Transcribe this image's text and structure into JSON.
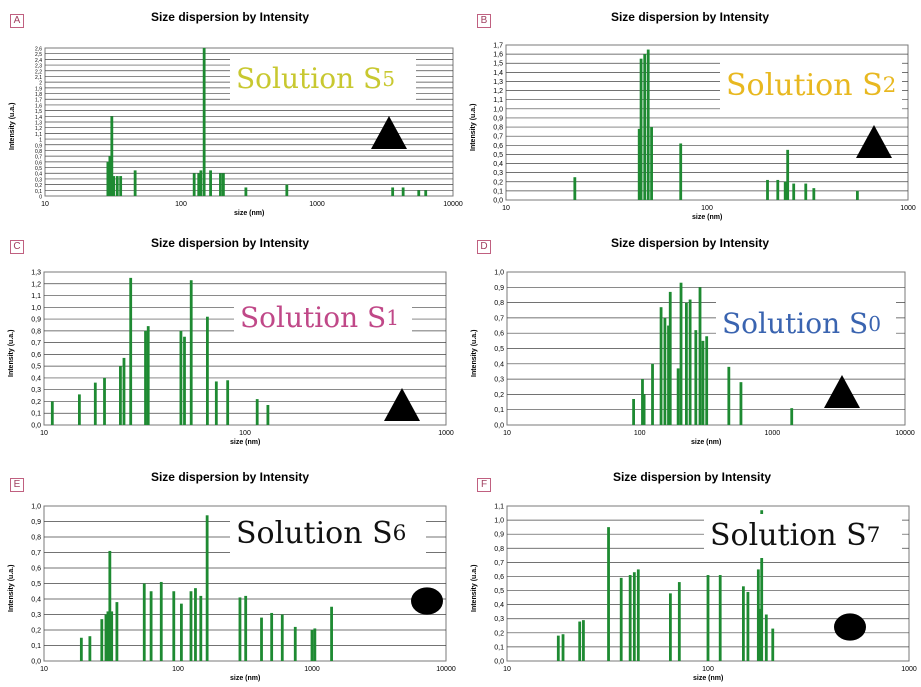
{
  "chart_data": [
    {
      "id": "A",
      "letter": "A",
      "type": "bar",
      "title": "Size dispersion by Intensity",
      "xlabel": "size (nm)",
      "ylabel": "Intensity (u.a.)",
      "x_scale": "log",
      "xlim": [
        10,
        10000
      ],
      "xticks": [
        "10",
        "100",
        "1000",
        "10000"
      ],
      "ylim": [
        0,
        2.6
      ],
      "yticks": [
        "0",
        "0,1",
        "0,2",
        "0,3",
        "0,4",
        "0,5",
        "0,6",
        "0,7",
        "0,8",
        "0,9",
        "1",
        "1,1",
        "1,2",
        "1,3",
        "1,4",
        "1,5",
        "1,6",
        "1,7",
        "1,8",
        "1,9",
        "2",
        "2,1",
        "2,2",
        "2,3",
        "2,4",
        "2,5",
        "2,6"
      ],
      "label_text": "Solution S",
      "label_sub": "5",
      "label_color": "#c8c830",
      "marker": "triangle",
      "bars": [
        [
          29,
          0.6
        ],
        [
          30,
          0.7
        ],
        [
          31,
          1.4
        ],
        [
          32,
          0.35
        ],
        [
          34,
          0.35
        ],
        [
          36,
          0.35
        ],
        [
          46,
          0.45
        ],
        [
          125,
          0.4
        ],
        [
          135,
          0.4
        ],
        [
          140,
          0.45
        ],
        [
          148,
          2.6
        ],
        [
          165,
          0.45
        ],
        [
          195,
          0.4
        ],
        [
          205,
          0.4
        ],
        [
          300,
          0.15
        ],
        [
          600,
          0.2
        ],
        [
          3600,
          0.15
        ],
        [
          4300,
          0.15
        ],
        [
          5600,
          0.1
        ],
        [
          6300,
          0.1
        ]
      ]
    },
    {
      "id": "B",
      "letter": "B",
      "type": "bar",
      "title": "Size dispersion by Intensity",
      "xlabel": "size (nm)",
      "ylabel": "Intensity (u.a.)",
      "x_scale": "log",
      "xlim": [
        10,
        1000
      ],
      "xticks": [
        "10",
        "100",
        "1000"
      ],
      "ylim": [
        0,
        1.7
      ],
      "yticks": [
        "0,0",
        "0,1",
        "0,2",
        "0,3",
        "0,4",
        "0,5",
        "0,6",
        "0,7",
        "0,8",
        "0,9",
        "1,0",
        "1,1",
        "1,2",
        "1,3",
        "1,4",
        "1,5",
        "1,6",
        "1,7"
      ],
      "label_text": "Solution S",
      "label_sub": "2",
      "label_color": "#e8b820",
      "marker": "triangle",
      "bars": [
        [
          22,
          0.25
        ],
        [
          46,
          0.78
        ],
        [
          47,
          1.55
        ],
        [
          49,
          1.6
        ],
        [
          51,
          1.65
        ],
        [
          53,
          0.8
        ],
        [
          74,
          0.62
        ],
        [
          200,
          0.22
        ],
        [
          225,
          0.22
        ],
        [
          245,
          0.2
        ],
        [
          252,
          0.55
        ],
        [
          270,
          0.18
        ],
        [
          310,
          0.18
        ],
        [
          340,
          0.13
        ],
        [
          560,
          0.1
        ]
      ]
    },
    {
      "id": "C",
      "letter": "C",
      "type": "bar",
      "title": "Size dispersion by Intensity",
      "xlabel": "size (nm)",
      "ylabel": "Intensity (u.a.)",
      "x_scale": "log",
      "xlim": [
        10,
        1000
      ],
      "xticks": [
        "10",
        "100",
        "1000"
      ],
      "ylim": [
        0,
        1.3
      ],
      "yticks": [
        "0,0",
        "0,1",
        "0,2",
        "0,3",
        "0,4",
        "0,5",
        "0,6",
        "0,7",
        "0,8",
        "0,9",
        "1,0",
        "1,1",
        "1,2",
        "1,3"
      ],
      "label_text": "Solution S",
      "label_sub": "1",
      "label_color": "#c04888",
      "marker": "triangle",
      "bars": [
        [
          11,
          0.2
        ],
        [
          15,
          0.26
        ],
        [
          18,
          0.36
        ],
        [
          20,
          0.4
        ],
        [
          24,
          0.5
        ],
        [
          25,
          0.57
        ],
        [
          27,
          1.25
        ],
        [
          32,
          0.8
        ],
        [
          33,
          0.84
        ],
        [
          48,
          0.8
        ],
        [
          50,
          0.75
        ],
        [
          54,
          1.23
        ],
        [
          65,
          0.92
        ],
        [
          72,
          0.37
        ],
        [
          82,
          0.38
        ],
        [
          115,
          0.22
        ],
        [
          130,
          0.17
        ]
      ]
    },
    {
      "id": "D",
      "letter": "D",
      "type": "bar",
      "title": "Size dispersion by Intensity",
      "xlabel": "size (nm)",
      "ylabel": "Intensity (u.a.)",
      "x_scale": "log",
      "xlim": [
        10,
        10000
      ],
      "xticks": [
        "10",
        "100",
        "1000",
        "10000"
      ],
      "ylim": [
        0,
        1.0
      ],
      "yticks": [
        "0,0",
        "0,1",
        "0,2",
        "0,3",
        "0,4",
        "0,5",
        "0,6",
        "0,7",
        "0,8",
        "0,9",
        "1,0"
      ],
      "label_text": "Solution S",
      "label_sub": "0",
      "label_color": "#3a64b0",
      "marker": "triangle",
      "bars": [
        [
          90,
          0.17
        ],
        [
          105,
          0.3
        ],
        [
          108,
          0.2
        ],
        [
          125,
          0.4
        ],
        [
          145,
          0.77
        ],
        [
          155,
          0.7
        ],
        [
          165,
          0.65
        ],
        [
          170,
          0.87
        ],
        [
          195,
          0.37
        ],
        [
          205,
          0.93
        ],
        [
          225,
          0.8
        ],
        [
          240,
          0.82
        ],
        [
          265,
          0.62
        ],
        [
          285,
          0.9
        ],
        [
          300,
          0.55
        ],
        [
          320,
          0.58
        ],
        [
          470,
          0.38
        ],
        [
          580,
          0.28
        ],
        [
          1400,
          0.11
        ]
      ]
    },
    {
      "id": "E",
      "letter": "E",
      "type": "bar",
      "title": "Size dispersion by Intensity",
      "xlabel": "size (nm)",
      "ylabel": "Intensity (u.a.)",
      "x_scale": "log",
      "xlim": [
        10,
        10000
      ],
      "xticks": [
        "10",
        "100",
        "1000",
        "10000"
      ],
      "ylim": [
        0,
        1.0
      ],
      "yticks": [
        "0,0",
        "0,1",
        "0,2",
        "0,3",
        "0,4",
        "0,5",
        "0,6",
        "0,7",
        "0,8",
        "0,9",
        "1,0"
      ],
      "label_text": "Solution S",
      "label_sub": "6",
      "label_color": "#111111",
      "marker": "circle",
      "bars": [
        [
          19,
          0.15
        ],
        [
          22,
          0.16
        ],
        [
          27,
          0.27
        ],
        [
          29,
          0.3
        ],
        [
          30,
          0.32
        ],
        [
          31,
          0.71
        ],
        [
          32,
          0.32
        ],
        [
          35,
          0.38
        ],
        [
          56,
          0.5
        ],
        [
          63,
          0.45
        ],
        [
          75,
          0.51
        ],
        [
          93,
          0.45
        ],
        [
          106,
          0.37
        ],
        [
          125,
          0.45
        ],
        [
          135,
          0.47
        ],
        [
          148,
          0.42
        ],
        [
          165,
          0.94
        ],
        [
          290,
          0.41
        ],
        [
          320,
          0.42
        ],
        [
          420,
          0.28
        ],
        [
          500,
          0.31
        ],
        [
          600,
          0.3
        ],
        [
          750,
          0.22
        ],
        [
          1000,
          0.2
        ],
        [
          1050,
          0.21
        ],
        [
          1400,
          0.35
        ]
      ]
    },
    {
      "id": "F",
      "letter": "F",
      "type": "bar",
      "title": "Size dispersion by Intensity",
      "xlabel": "size (nm)",
      "ylabel": "Intensity (u.a.)",
      "x_scale": "log",
      "xlim": [
        10,
        1000
      ],
      "xticks": [
        "10",
        "100",
        "1000"
      ],
      "ylim": [
        0,
        1.1
      ],
      "yticks": [
        "0,0",
        "0,1",
        "0,2",
        "0,3",
        "0,4",
        "0,5",
        "0,6",
        "0,7",
        "0,8",
        "0,9",
        "1,0",
        "1,1"
      ],
      "label_text": "Solution S",
      "label_sub": "7",
      "label_color": "#111111",
      "marker": "circle",
      "bars": [
        [
          18,
          0.18
        ],
        [
          19,
          0.19
        ],
        [
          23,
          0.28
        ],
        [
          24,
          0.29
        ],
        [
          32,
          0.95
        ],
        [
          37,
          0.59
        ],
        [
          41,
          0.61
        ],
        [
          43,
          0.63
        ],
        [
          45,
          0.65
        ],
        [
          65,
          0.48
        ],
        [
          72,
          0.56
        ],
        [
          100,
          0.61
        ],
        [
          115,
          0.61
        ],
        [
          150,
          0.53
        ],
        [
          158,
          0.49
        ],
        [
          178,
          0.65
        ],
        [
          182,
          0.37
        ],
        [
          195,
          0.33
        ],
        [
          210,
          0.23
        ],
        [
          185,
          1.07
        ]
      ]
    }
  ]
}
